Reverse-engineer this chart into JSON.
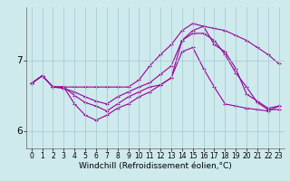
{
  "line1": [
    6.67,
    6.78,
    6.62,
    6.62,
    6.62,
    6.62,
    6.62,
    6.62,
    6.62,
    6.62,
    6.72,
    6.92,
    7.08,
    7.22,
    7.42,
    7.52,
    7.48,
    7.45,
    7.42,
    7.35,
    7.28,
    7.18,
    7.08,
    6.95
  ],
  "line2": [
    6.67,
    6.78,
    6.62,
    6.6,
    6.55,
    6.48,
    6.42,
    6.38,
    6.48,
    6.55,
    6.62,
    6.68,
    6.8,
    6.92,
    7.28,
    7.42,
    7.48,
    7.22,
    7.12,
    6.88,
    6.52,
    6.42,
    6.32,
    6.35
  ],
  "line3": [
    6.67,
    6.78,
    6.62,
    6.62,
    6.5,
    6.4,
    6.35,
    6.28,
    6.38,
    6.48,
    6.55,
    6.62,
    6.65,
    6.75,
    7.12,
    7.18,
    6.88,
    6.62,
    6.38,
    6.35,
    6.32,
    6.3,
    6.28,
    6.35
  ],
  "line4": [
    6.67,
    6.78,
    6.62,
    6.62,
    6.38,
    6.22,
    6.15,
    6.22,
    6.32,
    6.38,
    6.48,
    6.55,
    6.65,
    6.75,
    7.28,
    7.38,
    7.38,
    7.28,
    7.08,
    6.82,
    6.62,
    6.4,
    6.3,
    6.3
  ],
  "x": [
    0,
    1,
    2,
    3,
    4,
    5,
    6,
    7,
    8,
    9,
    10,
    11,
    12,
    13,
    14,
    15,
    16,
    17,
    18,
    19,
    20,
    21,
    22,
    23
  ],
  "line_color": "#990099",
  "marker": "+",
  "markersize": 3,
  "linewidth": 0.8,
  "xlabel": "Windchill (Refroidissement éolien,°C)",
  "xlabel_fontsize": 6.5,
  "ylim": [
    5.75,
    7.75
  ],
  "xlim": [
    -0.5,
    23.5
  ],
  "yticks": [
    6,
    7
  ],
  "xticks": [
    0,
    1,
    2,
    3,
    4,
    5,
    6,
    7,
    8,
    9,
    10,
    11,
    12,
    13,
    14,
    15,
    16,
    17,
    18,
    19,
    20,
    21,
    22,
    23
  ],
  "bg_color": "#ceeaed",
  "grid_color": "#aacdd1",
  "tick_fontsize": 5.5,
  "ytick_fontsize": 7.5
}
